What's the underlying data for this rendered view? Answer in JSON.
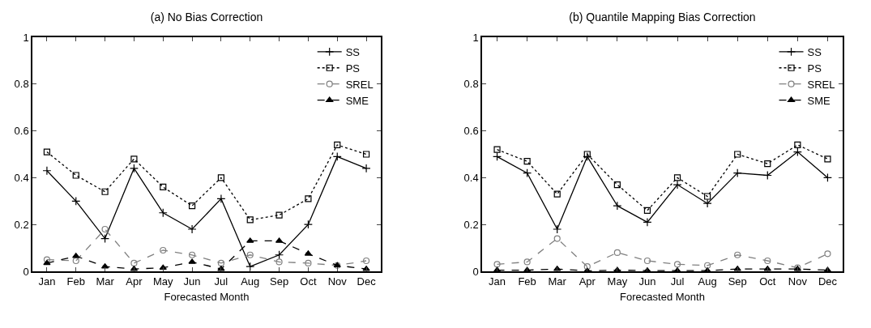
{
  "chart_data": [
    {
      "type": "line",
      "title": "(a) No Bias Correction",
      "xlabel": "Forecasted Month",
      "categories": [
        "Jan",
        "Feb",
        "Mar",
        "Apr",
        "May",
        "Jun",
        "Jul",
        "Aug",
        "Sep",
        "Oct",
        "Nov",
        "Dec"
      ],
      "ylim": [
        0,
        1
      ],
      "yticks": [
        0,
        0.2,
        0.4,
        0.6,
        0.8,
        1
      ],
      "grid": false,
      "legend": "top right",
      "series": [
        {
          "name": "SS",
          "color": "#000000",
          "marker": "cross",
          "line_style": "solid",
          "values": [
            0.43,
            0.3,
            0.14,
            0.44,
            0.25,
            0.18,
            0.31,
            0.02,
            0.07,
            0.2,
            0.49,
            0.44
          ]
        },
        {
          "name": "PS",
          "color": "#000000",
          "marker": "square",
          "line_style": "dotted",
          "values": [
            0.51,
            0.41,
            0.34,
            0.48,
            0.36,
            0.28,
            0.4,
            0.22,
            0.24,
            0.31,
            0.54,
            0.5
          ]
        },
        {
          "name": "SREL",
          "color": "#808080",
          "marker": "circle",
          "line_style": "dashed",
          "values": [
            0.05,
            0.045,
            0.18,
            0.035,
            0.09,
            0.07,
            0.035,
            0.07,
            0.04,
            0.035,
            0.025,
            0.045
          ]
        },
        {
          "name": "SME",
          "color": "#000000",
          "marker": "triangle",
          "line_style": "dashed",
          "values": [
            0.035,
            0.065,
            0.02,
            0.01,
            0.015,
            0.04,
            0.01,
            0.13,
            0.13,
            0.075,
            0.025,
            0.01
          ]
        }
      ]
    },
    {
      "type": "line",
      "title": "(b) Quantile Mapping Bias Correction",
      "xlabel": "Forecasted Month",
      "categories": [
        "Jan",
        "Feb",
        "Mar",
        "Apr",
        "May",
        "Jun",
        "Jul",
        "Aug",
        "Sep",
        "Oct",
        "Nov",
        "Dec"
      ],
      "ylim": [
        0,
        1
      ],
      "yticks": [
        0,
        0.2,
        0.4,
        0.6,
        0.8,
        1
      ],
      "grid": false,
      "legend": "top right",
      "series": [
        {
          "name": "SS",
          "color": "#000000",
          "marker": "cross",
          "line_style": "solid",
          "values": [
            0.49,
            0.42,
            0.18,
            0.49,
            0.28,
            0.21,
            0.37,
            0.29,
            0.42,
            0.41,
            0.51,
            0.4
          ]
        },
        {
          "name": "PS",
          "color": "#000000",
          "marker": "square",
          "line_style": "dotted",
          "values": [
            0.52,
            0.47,
            0.33,
            0.5,
            0.37,
            0.26,
            0.4,
            0.32,
            0.5,
            0.46,
            0.54,
            0.48
          ]
        },
        {
          "name": "SREL",
          "color": "#808080",
          "marker": "circle",
          "line_style": "dashed",
          "values": [
            0.03,
            0.04,
            0.14,
            0.02,
            0.08,
            0.045,
            0.03,
            0.025,
            0.07,
            0.045,
            0.015,
            0.075
          ]
        },
        {
          "name": "SME",
          "color": "#000000",
          "marker": "triangle",
          "line_style": "dashed",
          "values": [
            0.005,
            0.005,
            0.01,
            0.002,
            0.005,
            0.003,
            0.003,
            0.003,
            0.01,
            0.01,
            0.01,
            0.005
          ]
        }
      ]
    }
  ]
}
